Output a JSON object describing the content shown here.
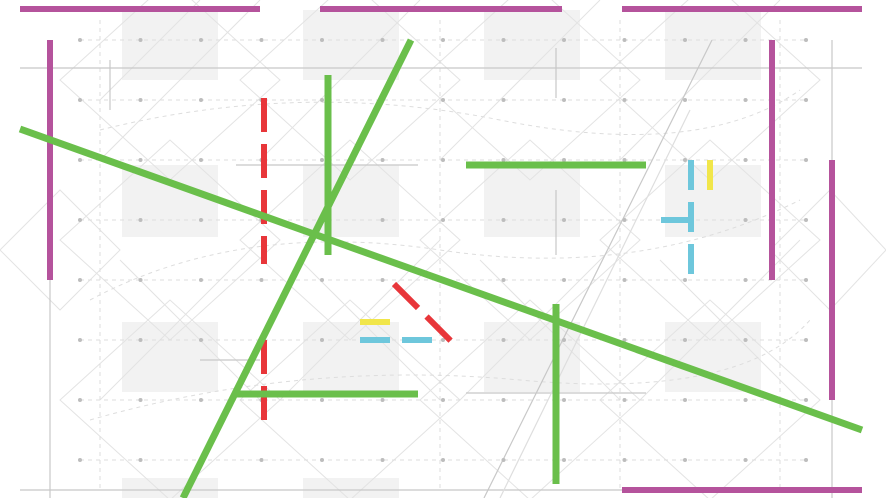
{
  "colors": {
    "background": "#ffffff",
    "tile": "#f2f2f2",
    "grid_line": "#c8c8c8",
    "faint_line": "#dcdcdc",
    "dot": "#bdbdbd",
    "green": "#6abf4b",
    "magenta": "#b5539c",
    "red": "#e8363a",
    "cyan": "#6ec7dc",
    "yellow": "#f1e64a"
  },
  "legend": []
}
